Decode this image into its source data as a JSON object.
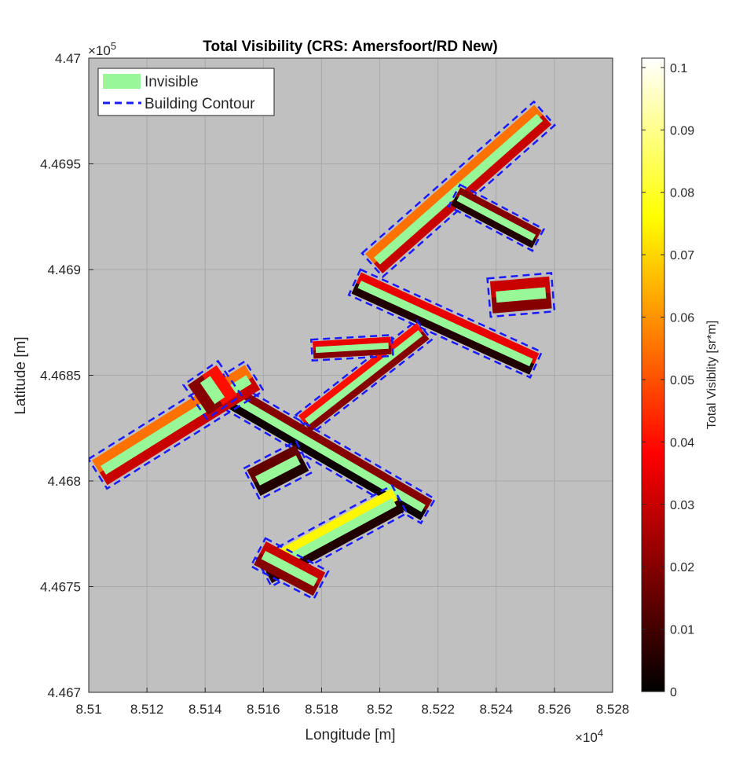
{
  "chart_data": {
    "type": "heatmap",
    "title": "Total Visibility (CRS: Amersfoort/RD New)",
    "xlabel": "Longitude [m]",
    "ylabel": "Latitude [m]",
    "x_multiplier_label": "×10",
    "x_multiplier_exp": "4",
    "y_multiplier_label": "×10",
    "y_multiplier_exp": "5",
    "xlim": [
      85100,
      85280
    ],
    "ylim": [
      446700,
      447000
    ],
    "x_ticks": [
      85100,
      85120,
      85140,
      85160,
      85180,
      85200,
      85220,
      85240,
      85260,
      85280
    ],
    "x_tick_labels": [
      "8.51",
      "8.512",
      "8.514",
      "8.516",
      "8.518",
      "8.52",
      "8.522",
      "8.524",
      "8.526",
      "8.528"
    ],
    "y_ticks": [
      446700,
      446750,
      446800,
      446850,
      446900,
      446950,
      447000
    ],
    "y_tick_labels": [
      "4.467",
      "4.4675",
      "4.468",
      "4.4685",
      "4.469",
      "4.4695",
      "4.47"
    ],
    "grid": true,
    "background_color": "#c0c0c0",
    "invisible_color": "#98f898",
    "contour_color": "#1a1aff",
    "legend": {
      "placement": "top-left",
      "entries": [
        {
          "label": "Invisible",
          "style": "patch",
          "color": "#98f898"
        },
        {
          "label": "Building Contour",
          "style": "dashed-line",
          "color": "#1a1aff"
        }
      ]
    },
    "colorbar": {
      "label": "Total Visiblity [sr*m]",
      "colormap": "hot",
      "clim": [
        0,
        0.1015
      ],
      "ticks": [
        0,
        0.01,
        0.02,
        0.03,
        0.04,
        0.05,
        0.06,
        0.07,
        0.08,
        0.09,
        0.1
      ],
      "tick_labels": [
        "0",
        "0.01",
        "0.02",
        "0.03",
        "0.04",
        "0.05",
        "0.06",
        "0.07",
        "0.08",
        "0.09",
        "0.1"
      ]
    },
    "wings": [
      {
        "from": [
          85199,
          446904
        ],
        "to": [
          85255,
          446972
        ],
        "width": 9,
        "ne_value": 0.055,
        "sw_value": 0.03
      },
      {
        "from": [
          85227,
          446934
        ],
        "to": [
          85253,
          446915
        ],
        "width": 7,
        "ne_value": 0.02,
        "sw_value": 0.005
      },
      {
        "from": [
          85193,
          446893
        ],
        "to": [
          85252,
          446856
        ],
        "width": 8,
        "ne_value": 0.035,
        "sw_value": 0.005
      },
      {
        "from": [
          85175,
          446828
        ],
        "to": [
          85214,
          446870
        ],
        "width": 7,
        "ne_value": 0.04,
        "sw_value": 0.02
      },
      {
        "from": [
          85178,
          446862
        ],
        "to": [
          85203,
          446864
        ],
        "width": 6,
        "ne_value": 0.035,
        "sw_value": 0.02
      },
      {
        "from": [
          85145,
          446843
        ],
        "to": [
          85215,
          446787
        ],
        "width": 8,
        "ne_value": 0.02,
        "sw_value": 0.002
      },
      {
        "from": [
          85105,
          446805
        ],
        "to": [
          85155,
          446848
        ],
        "width": 10,
        "ne_value": 0.055,
        "sw_value": 0.03
      },
      {
        "from": [
          85140,
          446848
        ],
        "to": [
          85145,
          446838
        ],
        "width": 12,
        "ne_value": 0.04,
        "sw_value": 0.02
      },
      {
        "from": [
          85158,
          446800
        ],
        "to": [
          85172,
          446810
        ],
        "width": 10,
        "ne_value": 0.015,
        "sw_value": 0.005
      },
      {
        "from": [
          85162,
          446758
        ],
        "to": [
          85205,
          446790
        ],
        "width": 9,
        "ne_value": 0.075,
        "sw_value": 0.005
      },
      {
        "from": [
          85160,
          446765
        ],
        "to": [
          85178,
          446752
        ],
        "width": 9,
        "ne_value": 0.03,
        "sw_value": 0.02
      },
      {
        "from": [
          85240,
          446887
        ],
        "to": [
          85257,
          446889
        ],
        "width": 11,
        "ne_value": 0.03,
        "sw_value": 0.02
      }
    ]
  }
}
